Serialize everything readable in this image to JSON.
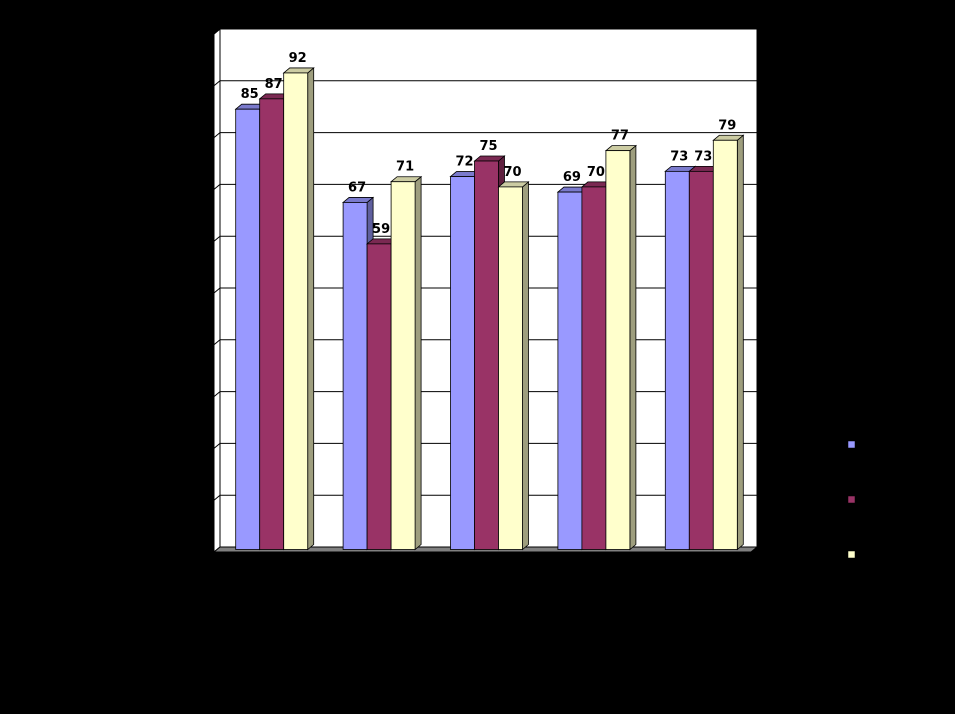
{
  "chart_data": {
    "type": "bar",
    "categories": [
      "",
      "",
      "",
      "",
      ""
    ],
    "series": [
      {
        "values": [
          85,
          67,
          72,
          69,
          73
        ],
        "color": "#9999FF"
      },
      {
        "values": [
          87,
          59,
          75,
          70,
          73
        ],
        "color": "#993366"
      },
      {
        "values": [
          92,
          71,
          70,
          77,
          79
        ],
        "color": "#FFFFCC"
      }
    ],
    "ylim": [
      0,
      100
    ],
    "grid": true,
    "legend": "right",
    "background": "#000000",
    "plot_background": "#FFFFFF"
  }
}
